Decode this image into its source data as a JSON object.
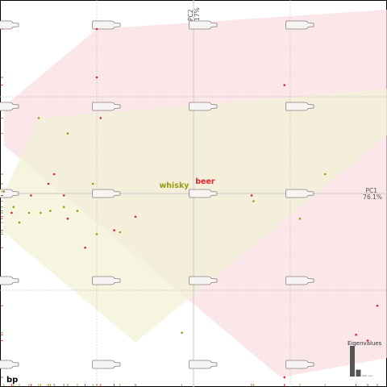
{
  "chart_data": {
    "type": "scatter",
    "title": "",
    "xlim": [
      -1.0,
      1.0
    ],
    "ylim": [
      -1.0,
      1.0
    ],
    "grid_step": 0.5,
    "axes": {
      "x_label": "PC1",
      "x_percent": "76.1%",
      "y_label": "PC2",
      "y_percent": "17%"
    },
    "corner_label": "bp",
    "groups": [
      {
        "name": "beer",
        "color": "#e0232e",
        "hull_fill": "#f9dde1",
        "label_pos": [
          0.06,
          0.05
        ],
        "hull": [
          [
            -0.98,
            0.45
          ],
          [
            -0.5,
            0.85
          ],
          [
            1.0,
            0.95
          ],
          [
            1.0,
            -0.85
          ],
          [
            0.45,
            -0.95
          ],
          [
            -0.98,
            0.25
          ]
        ],
        "points": [
          [
            -0.5,
            0.85
          ],
          [
            -0.5,
            0.6
          ],
          [
            -0.48,
            0.39
          ],
          [
            -0.72,
            0.1
          ],
          [
            -0.84,
            -0.01
          ],
          [
            -0.67,
            -0.01
          ],
          [
            -0.75,
            0.05
          ],
          [
            -0.94,
            -0.1
          ],
          [
            -0.65,
            -0.13
          ],
          [
            -0.41,
            -0.19
          ],
          [
            0.3,
            -0.01
          ],
          [
            0.95,
            -0.58
          ],
          [
            0.47,
            0.56
          ],
          [
            0.84,
            -0.73
          ],
          [
            0.9,
            -0.76
          ],
          [
            0.47,
            -0.95
          ],
          [
            -0.3,
            -0.12
          ],
          [
            -0.56,
            -0.28
          ]
        ]
      },
      {
        "name": "whisky",
        "color": "#9a9a10",
        "hull_fill": "#f1f1d6",
        "label_pos": [
          -0.1,
          0.03
        ],
        "hull": [
          [
            -0.98,
            0.0
          ],
          [
            -0.8,
            0.39
          ],
          [
            1.0,
            0.54
          ],
          [
            1.0,
            0.3
          ],
          [
            -0.3,
            -0.77
          ],
          [
            -0.98,
            -0.2
          ]
        ],
        "points": [
          [
            -0.8,
            0.39
          ],
          [
            -0.65,
            0.31
          ],
          [
            -0.98,
            0.01
          ],
          [
            -0.93,
            -0.07
          ],
          [
            -0.85,
            -0.1
          ],
          [
            -0.79,
            -0.1
          ],
          [
            -0.74,
            -0.09
          ],
          [
            -0.67,
            -0.07
          ],
          [
            -0.6,
            -0.09
          ],
          [
            -0.5,
            -0.21
          ],
          [
            -0.38,
            -0.2
          ],
          [
            -0.06,
            -0.72
          ],
          [
            0.31,
            -0.04
          ],
          [
            0.55,
            -0.13
          ],
          [
            0.68,
            0.1
          ],
          [
            -0.52,
            0.05
          ],
          [
            -0.9,
            -0.15
          ]
        ]
      }
    ],
    "eigenvalues": {
      "label": "Eigenvalues",
      "values": [
        76.1,
        17,
        4,
        2.9
      ]
    }
  }
}
